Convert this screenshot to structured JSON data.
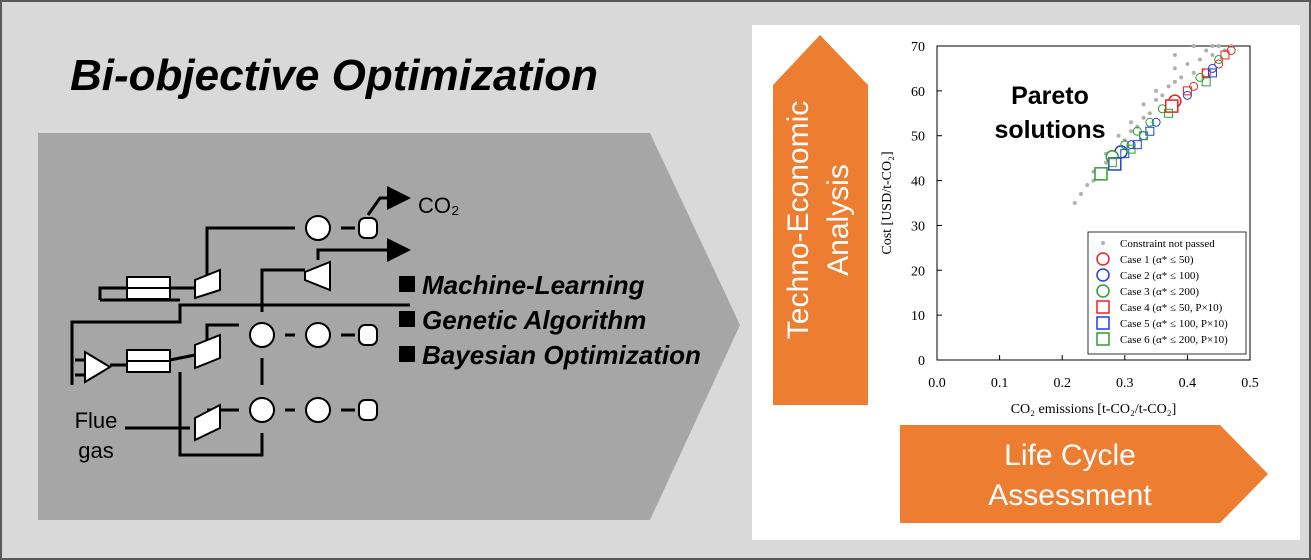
{
  "title": "Bi-objective Optimization",
  "diagram": {
    "product_label": "CO₂",
    "feed_label": [
      "Flue",
      "gas"
    ]
  },
  "methods": [
    "Machine-Learning",
    "Genetic Algorithm",
    "Bayesian Optimization"
  ],
  "analyses": {
    "techno_economic": [
      "Techno-Economic",
      "Analysis"
    ],
    "life_cycle": [
      "Life Cycle",
      "Assessment"
    ]
  },
  "chart_data": {
    "type": "scatter",
    "annotation": [
      "Pareto",
      "solutions"
    ],
    "x_label": "CO₂ emissions [t-CO₂/t-CO₂]",
    "y_label": "Cost [USD/t-CO₂]",
    "xlim": [
      0,
      0.5
    ],
    "xticks": [
      {
        "value": 0,
        "label": "0.0"
      },
      0.1,
      0.2,
      0.3,
      0.4,
      0.5
    ],
    "ylim": [
      0,
      70
    ],
    "yticks": [
      0,
      10,
      20,
      30,
      40,
      50,
      60,
      70
    ],
    "legend": "lower right",
    "series": [
      {
        "name": "Constraint not passed",
        "color": "#b0b0b0",
        "marker": "dot",
        "x": [
          0.22,
          0.23,
          0.24,
          0.25,
          0.25,
          0.26,
          0.27,
          0.27,
          0.28,
          0.29,
          0.29,
          0.3,
          0.31,
          0.31,
          0.32,
          0.33,
          0.33,
          0.34,
          0.35,
          0.35,
          0.36,
          0.37,
          0.38,
          0.38,
          0.39,
          0.4,
          0.41,
          0.42,
          0.43,
          0.44,
          0.45,
          0.46,
          0.47,
          0.38,
          0.41,
          0.44
        ],
        "y": [
          35,
          37,
          39,
          40,
          42,
          41,
          44,
          46,
          45,
          47,
          50,
          49,
          51,
          53,
          52,
          54,
          57,
          55,
          58,
          60,
          59,
          61,
          62,
          65,
          63,
          66,
          64,
          67,
          69,
          68,
          70,
          69,
          70,
          68,
          70,
          70
        ]
      },
      {
        "name": "Case 1 (α* ≤ 50)",
        "color": "#e8251f",
        "marker": "circle",
        "x": [
          0.38,
          0.41,
          0.43,
          0.45,
          0.47
        ],
        "y": [
          57.7,
          61,
          64,
          66,
          69
        ]
      },
      {
        "name": "Case 2 (α* ≤ 100)",
        "color": "#1f3fe0",
        "marker": "circle",
        "x": [
          0.294,
          0.31,
          0.33,
          0.35,
          0.4,
          0.44
        ],
        "y": [
          46.4,
          48,
          50,
          53,
          59,
          65
        ]
      },
      {
        "name": "Case 3 (α* ≤ 200)",
        "color": "#2ca02c",
        "marker": "circle",
        "x": [
          0.28,
          0.3,
          0.32,
          0.34,
          0.36,
          0.42,
          0.45
        ],
        "y": [
          45.3,
          48,
          51,
          53,
          56,
          63,
          67
        ]
      },
      {
        "name": "Case 4 (α* ≤ 50, P×10)",
        "color": "#e8251f",
        "marker": "square",
        "x": [
          0.375,
          0.4,
          0.43,
          0.46
        ],
        "y": [
          56.6,
          60,
          64,
          68
        ]
      },
      {
        "name": "Case 5 (α* ≤ 100, P×10)",
        "color": "#1f3fe0",
        "marker": "square",
        "x": [
          0.284,
          0.3,
          0.32,
          0.34,
          0.44
        ],
        "y": [
          43.7,
          46,
          48,
          51,
          64
        ]
      },
      {
        "name": "Case 6 (α* ≤ 200, P×10)",
        "color": "#2ca02c",
        "marker": "square",
        "x": [
          0.262,
          0.28,
          0.31,
          0.33,
          0.37,
          0.43
        ],
        "y": [
          41.5,
          44,
          47,
          50,
          55,
          62
        ]
      }
    ]
  }
}
